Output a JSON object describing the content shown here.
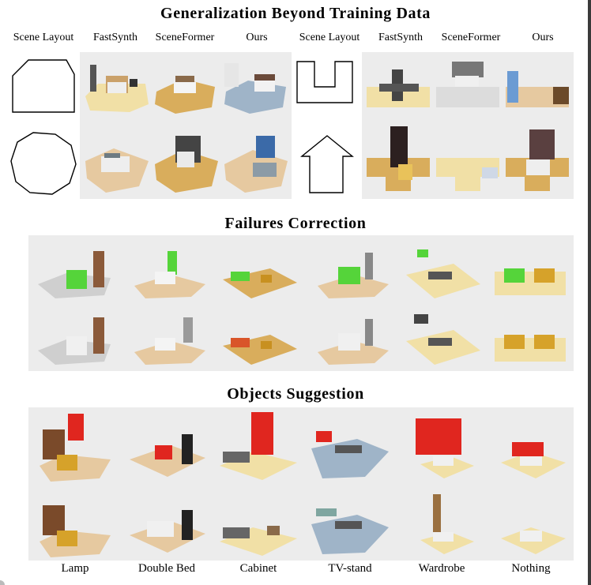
{
  "sections": {
    "generalization": {
      "title": "Generalization Beyond Training Data",
      "left_headers": [
        "Scene Layout",
        "FastSynth",
        "SceneFormer",
        "Ours"
      ],
      "right_headers": [
        "Scene Layout",
        "FastSynth",
        "SceneFormer",
        "Ours"
      ]
    },
    "failures": {
      "title": "Failures Correction"
    },
    "suggestion": {
      "title": "Objects Suggestion",
      "labels": [
        "Lamp",
        "Double Bed",
        "Cabinet",
        "TV-stand",
        "Wardrobe",
        "Nothing"
      ]
    }
  },
  "colors": {
    "suggestion_highlight": "#e0261f",
    "failure_highlight": "#55d43a",
    "panel_background": "#ececec",
    "floor_wood": "#d9ad5c",
    "floor_tile": "#e6c9a0",
    "floor_blue_tile": "#9fb4c8",
    "floor_cream": "#f1e0a6"
  },
  "icons": [
    "room-outline-shape",
    "3d-furnished-room-render"
  ]
}
